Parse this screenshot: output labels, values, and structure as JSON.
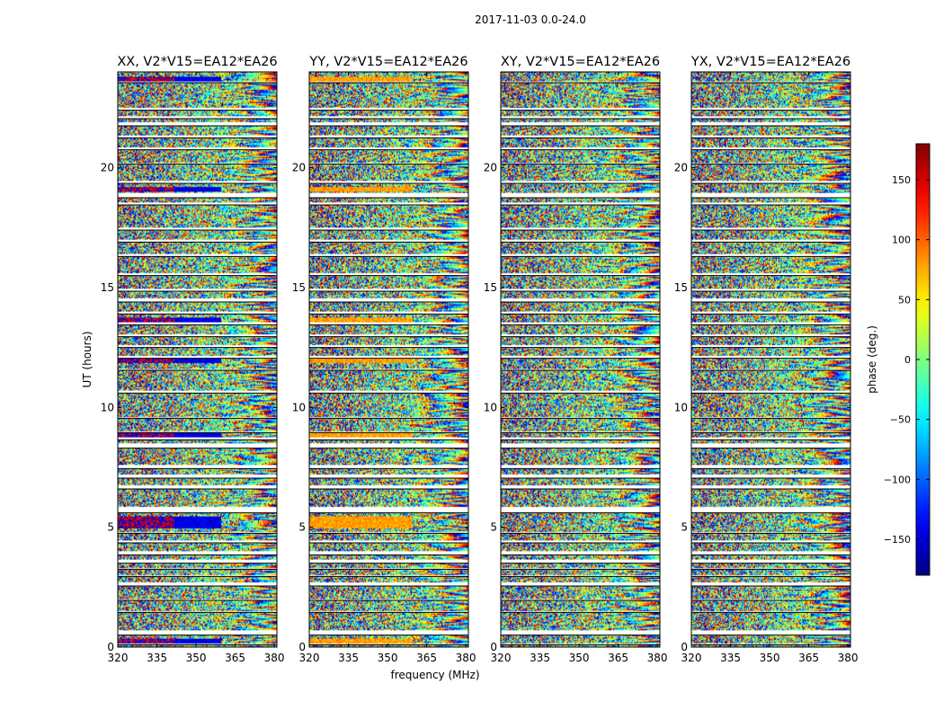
{
  "chart_data": {
    "type": "heatmap",
    "suptitle": "2017-11-03 0.0-24.0",
    "xlabel": "frequency (MHz)",
    "ylabel": "UT (hours)",
    "xlim": [
      320,
      381
    ],
    "ylim": [
      0,
      24
    ],
    "xticks": [
      320,
      335,
      350,
      365,
      380
    ],
    "yticks": [
      0,
      5,
      10,
      15,
      20
    ],
    "colorbar": {
      "label": "phase (deg.)",
      "range": [
        -180,
        180
      ],
      "ticks": [
        -150,
        -100,
        -50,
        0,
        50,
        100,
        150
      ],
      "colormap": "jet"
    },
    "panels": [
      {
        "title": "XX, V2*V15=EA12*EA26",
        "pol": "XX",
        "bias": "red"
      },
      {
        "title": "YY, V2*V15=EA12*EA26",
        "pol": "YY",
        "bias": "yellow"
      },
      {
        "title": "XY, V2*V15=EA12*EA26",
        "pol": "XY",
        "bias": "none"
      },
      {
        "title": "YX, V2*V15=EA12*EA26",
        "pol": "YX",
        "bias": "none"
      }
    ],
    "flagged_ut_ranges": [
      [
        0.1,
        0.15
      ],
      [
        0.5,
        0.7
      ],
      [
        1.45,
        1.52
      ],
      [
        1.95,
        2.02
      ],
      [
        2.55,
        2.7
      ],
      [
        2.95,
        3.0
      ],
      [
        3.25,
        3.3
      ],
      [
        3.5,
        3.65
      ],
      [
        3.85,
        4.0
      ],
      [
        4.35,
        4.45
      ],
      [
        4.75,
        4.82
      ],
      [
        5.6,
        5.85
      ],
      [
        6.6,
        6.75
      ],
      [
        7.05,
        7.2
      ],
      [
        7.45,
        7.6
      ],
      [
        8.3,
        8.5
      ],
      [
        8.65,
        8.75
      ],
      [
        8.95,
        9.02
      ],
      [
        9.55,
        9.62
      ],
      [
        10.6,
        10.68
      ],
      [
        11.55,
        11.62
      ],
      [
        12.05,
        12.15
      ],
      [
        12.5,
        12.6
      ],
      [
        12.95,
        13.05
      ],
      [
        13.45,
        13.55
      ],
      [
        13.9,
        14.0
      ],
      [
        14.4,
        14.55
      ],
      [
        14.85,
        14.95
      ],
      [
        15.5,
        15.58
      ],
      [
        16.3,
        16.38
      ],
      [
        16.9,
        16.98
      ],
      [
        17.4,
        17.5
      ],
      [
        18.45,
        18.55
      ],
      [
        18.75,
        18.95
      ],
      [
        19.35,
        19.45
      ],
      [
        20.15,
        20.22
      ],
      [
        20.75,
        20.85
      ],
      [
        21.25,
        21.35
      ],
      [
        21.75,
        21.9
      ],
      [
        22.05,
        22.15
      ],
      [
        22.4,
        22.5
      ],
      [
        23.55,
        23.62
      ]
    ],
    "grid": false,
    "legend": "none"
  }
}
